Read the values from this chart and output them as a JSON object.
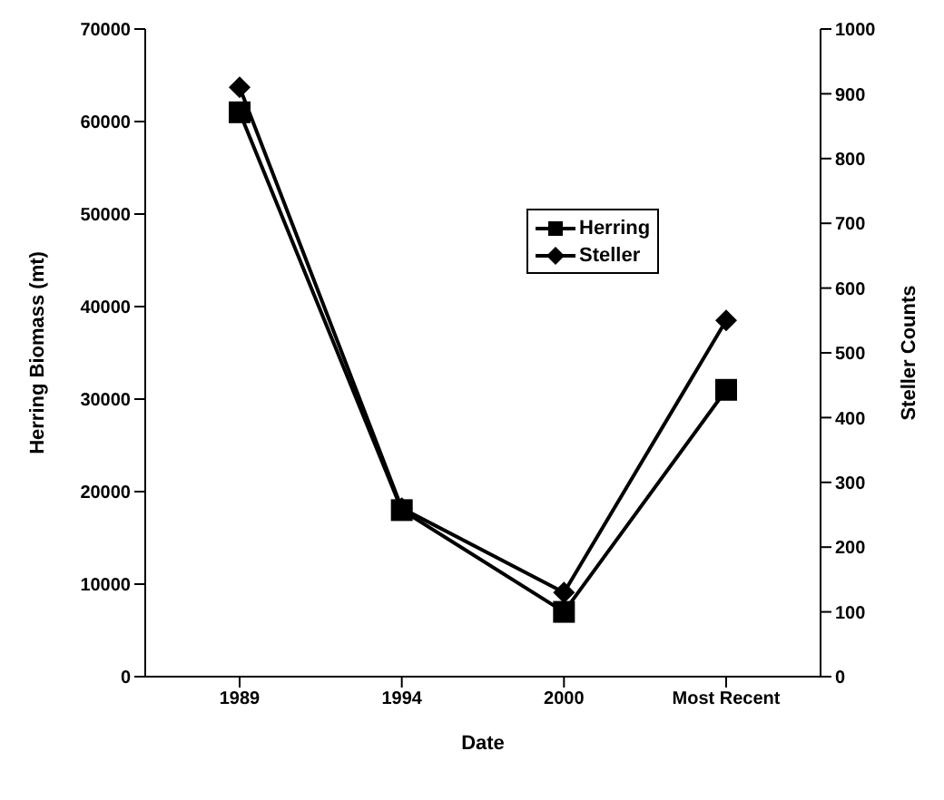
{
  "chart_data": {
    "type": "line",
    "xlabel": "Date",
    "ylabel": "Herring Biomass (mt)",
    "y2label": "Steller Counts",
    "categories": [
      "1989",
      "1994",
      "2000",
      "Most Recent"
    ],
    "series": [
      {
        "name": "Herring",
        "color": "#000000",
        "values": [
          61000,
          18000,
          7000,
          31000
        ],
        "marker": "square"
      },
      {
        "name": "Steller",
        "color": "#000000",
        "values": [
          910,
          260,
          130,
          550
        ],
        "marker": "diamond",
        "axis": "y2"
      }
    ],
    "ylim": [
      0,
      70000
    ],
    "yticks": [
      0,
      10000,
      20000,
      30000,
      40000,
      50000,
      60000,
      70000
    ],
    "y2lim": [
      0,
      1000
    ],
    "y2ticks": [
      0,
      100,
      200,
      300,
      400,
      500,
      600,
      700,
      800,
      900,
      1000
    ],
    "legend": "top right",
    "grid": false,
    "line_style": "solid"
  }
}
